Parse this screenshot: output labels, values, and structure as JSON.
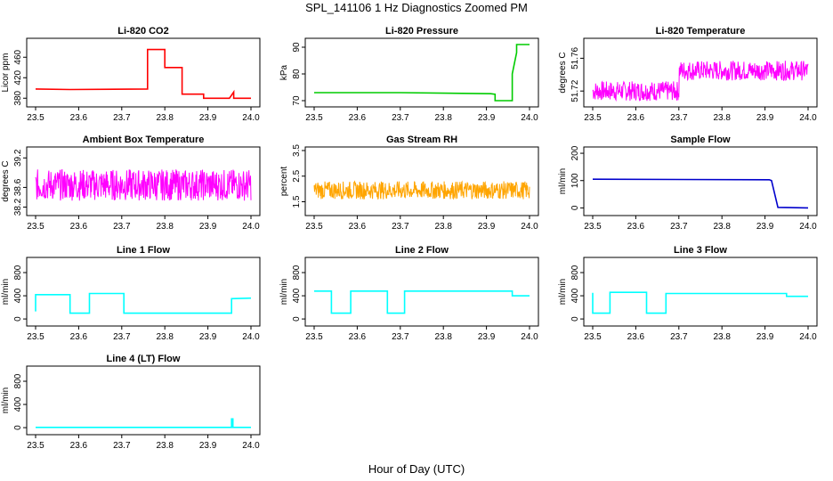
{
  "figure": {
    "title": "SPL_141106  1 Hz Diagnostics Zoomed PM",
    "xlabel": "Hour of Day (UTC)"
  },
  "chart_data": [
    {
      "type": "line",
      "title": "Li-820 CO2",
      "ylabel": "Licor ppm",
      "color": "#ff0000",
      "xlim": [
        23.5,
        24.0
      ],
      "ylim": [
        370,
        490
      ],
      "xticks": [
        "23.5",
        "23.6",
        "23.7",
        "23.8",
        "23.9",
        "24.0"
      ],
      "yticks": [
        "380",
        "420",
        "460"
      ],
      "x": [
        23.5,
        23.58,
        23.76,
        23.76,
        23.8,
        23.8,
        23.84,
        23.84,
        23.89,
        23.89,
        23.95,
        23.96,
        23.96,
        23.97,
        24.0
      ],
      "y": [
        398,
        397,
        398,
        475,
        475,
        440,
        440,
        388,
        388,
        380,
        380,
        392,
        380,
        380,
        380
      ]
    },
    {
      "type": "line",
      "title": "Li-820 Pressure",
      "ylabel": "kPa",
      "color": "#00cc00",
      "xlim": [
        23.5,
        24.0
      ],
      "ylim": [
        69,
        92
      ],
      "xticks": [
        "23.5",
        "23.6",
        "23.7",
        "23.8",
        "23.9",
        "24.0"
      ],
      "yticks": [
        "70",
        "80",
        "90"
      ],
      "x": [
        23.5,
        23.7,
        23.91,
        23.92,
        23.92,
        23.96,
        23.96,
        23.97,
        23.97,
        24.0
      ],
      "y": [
        73.0,
        73.0,
        72.6,
        72.4,
        70.0,
        70.0,
        80.0,
        88.0,
        91.0,
        91.0
      ]
    },
    {
      "type": "noise",
      "title": "Li-820 Temperature",
      "ylabel": "degrees C",
      "color": "#ff00ff",
      "xlim": [
        23.5,
        24.0
      ],
      "ylim": [
        51.705,
        51.78
      ],
      "xticks": [
        "23.5",
        "23.6",
        "23.7",
        "23.8",
        "23.9",
        "24.0"
      ],
      "yticks": [
        "51.72",
        "51.76"
      ],
      "x": [
        23.5,
        23.7,
        23.7,
        24.0
      ],
      "y": [
        51.72,
        51.72,
        51.745,
        51.745
      ],
      "spread": 0.012
    },
    {
      "type": "noise",
      "title": "Ambient Box Temperature",
      "ylabel": "degrees C",
      "color": "#ff00ff",
      "xlim": [
        23.5,
        24.0
      ],
      "ylim": [
        38.1,
        39.35
      ],
      "xticks": [
        "23.5",
        "23.6",
        "23.7",
        "23.8",
        "23.9",
        "24.0"
      ],
      "yticks": [
        "38.2",
        "38.6",
        "39.2"
      ],
      "x": [
        23.5,
        24.0
      ],
      "y": [
        38.65,
        38.7
      ],
      "spread": 0.32
    },
    {
      "type": "noise",
      "title": "Gas Stream RH",
      "ylabel": "percent",
      "color": "#ffa500",
      "xlim": [
        23.5,
        24.0
      ],
      "ylim": [
        1.1,
        3.5
      ],
      "xticks": [
        "23.5",
        "23.6",
        "23.7",
        "23.8",
        "23.9",
        "24.0"
      ],
      "yticks": [
        "1.5",
        "2.5",
        "3.5"
      ],
      "x": [
        23.5,
        24.0
      ],
      "y": [
        1.95,
        1.95
      ],
      "spread": 0.35
    },
    {
      "type": "line",
      "title": "Sample Flow",
      "ylabel": "ml/min",
      "color": "#0000cc",
      "xlim": [
        23.5,
        24.0
      ],
      "ylim": [
        -15,
        210
      ],
      "xticks": [
        "23.5",
        "23.6",
        "23.7",
        "23.8",
        "23.9",
        "24.0"
      ],
      "yticks": [
        "0",
        "100",
        "200"
      ],
      "x": [
        23.5,
        23.91,
        23.915,
        23.93,
        24.0
      ],
      "y": [
        105,
        103,
        100,
        2,
        0
      ]
    },
    {
      "type": "line",
      "title": "Line 1 Flow",
      "ylabel": "ml/min",
      "color": "#00ffff",
      "xlim": [
        23.5,
        24.0
      ],
      "ylim": [
        -60,
        1000
      ],
      "xticks": [
        "23.5",
        "23.6",
        "23.7",
        "23.8",
        "23.9",
        "24.0"
      ],
      "yticks": [
        "0",
        "400",
        "800"
      ],
      "x": [
        23.5,
        23.5,
        23.58,
        23.58,
        23.625,
        23.625,
        23.705,
        23.705,
        23.955,
        23.955,
        24.0
      ],
      "y": [
        130,
        420,
        420,
        100,
        100,
        440,
        440,
        100,
        100,
        350,
        360
      ]
    },
    {
      "type": "line",
      "title": "Line 2 Flow",
      "ylabel": "ml/min",
      "color": "#00ffff",
      "xlim": [
        23.5,
        24.0
      ],
      "ylim": [
        -60,
        1000
      ],
      "xticks": [
        "23.5",
        "23.6",
        "23.7",
        "23.8",
        "23.9",
        "24.0"
      ],
      "yticks": [
        "0",
        "400",
        "800"
      ],
      "x": [
        23.5,
        23.54,
        23.54,
        23.585,
        23.585,
        23.67,
        23.67,
        23.71,
        23.71,
        23.96,
        23.96,
        24.0
      ],
      "y": [
        480,
        480,
        100,
        100,
        480,
        480,
        100,
        100,
        480,
        480,
        400,
        400
      ]
    },
    {
      "type": "line",
      "title": "Line 3 Flow",
      "ylabel": "ml/min",
      "color": "#00ffff",
      "xlim": [
        23.5,
        24.0
      ],
      "ylim": [
        -60,
        1000
      ],
      "xticks": [
        "23.5",
        "23.6",
        "23.7",
        "23.8",
        "23.9",
        "24.0"
      ],
      "yticks": [
        "0",
        "400",
        "800"
      ],
      "x": [
        23.5,
        23.5,
        23.54,
        23.54,
        23.625,
        23.625,
        23.67,
        23.67,
        23.95,
        23.95,
        24.0
      ],
      "y": [
        450,
        100,
        100,
        460,
        460,
        100,
        100,
        440,
        440,
        390,
        390
      ]
    },
    {
      "type": "line",
      "title": "Line 4 (LT) Flow",
      "ylabel": "ml/min",
      "color": "#00ffff",
      "xlim": [
        23.5,
        24.0
      ],
      "ylim": [
        -60,
        1000
      ],
      "xticks": [
        "23.5",
        "23.6",
        "23.7",
        "23.8",
        "23.9",
        "24.0"
      ],
      "yticks": [
        "0",
        "400",
        "800"
      ],
      "x": [
        23.5,
        23.955,
        23.955,
        23.958,
        23.958,
        24.0
      ],
      "y": [
        5,
        5,
        150,
        150,
        5,
        5
      ]
    }
  ]
}
